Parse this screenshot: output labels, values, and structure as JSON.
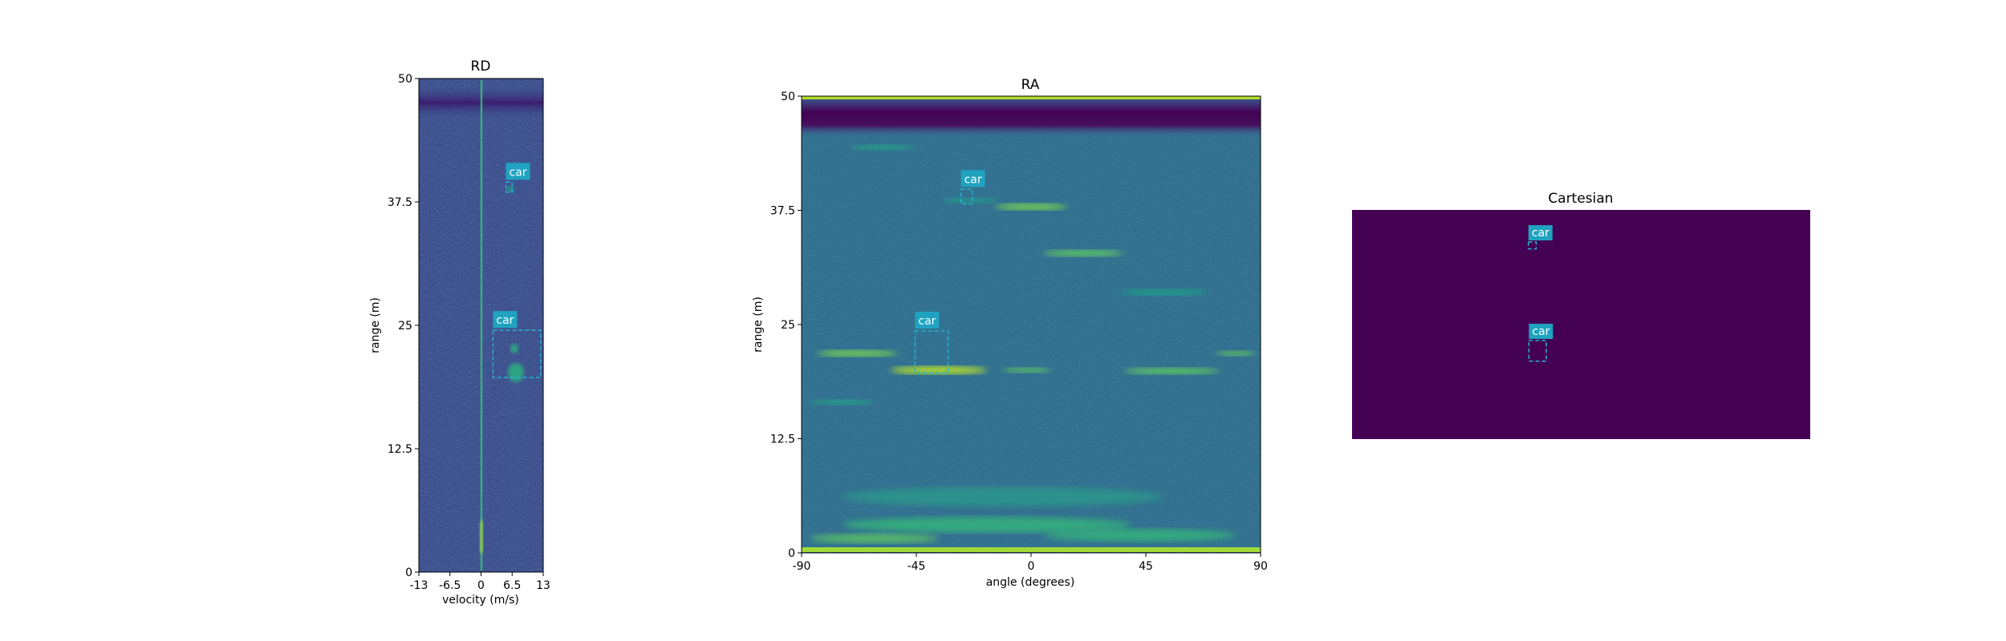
{
  "chart_data": [
    {
      "type": "heatmap",
      "title": "RD",
      "xlabel": "velocity (m/s)",
      "ylabel": "range (m)",
      "xlim": [
        -13,
        13
      ],
      "ylim": [
        0,
        50
      ],
      "x_ticks": [
        "-13",
        "-6.5",
        "0",
        "6.5",
        "13"
      ],
      "y_ticks": [
        "0",
        "12.5",
        "25",
        "37.5",
        "50"
      ],
      "colormap": "viridis",
      "annotations": [
        {
          "label": "car",
          "x0": 5.2,
          "x1": 6.5,
          "y0": 38.5,
          "y1": 39.5
        },
        {
          "label": "car",
          "x0": 2.5,
          "x1": 12.5,
          "y0": 19.7,
          "y1": 24.5
        }
      ]
    },
    {
      "type": "heatmap",
      "title": "RA",
      "xlabel": "angle (degrees)",
      "ylabel": "range (m)",
      "xlim": [
        -90,
        90
      ],
      "ylim": [
        0,
        50
      ],
      "x_ticks": [
        "-90",
        "-45",
        "0",
        "45",
        "90"
      ],
      "y_ticks": [
        "0",
        "12.5",
        "25",
        "37.5",
        "50"
      ],
      "colormap": "viridis",
      "annotations": [
        {
          "label": "car",
          "x0": -27.5,
          "x1": -23,
          "y0": 38.2,
          "y1": 39.8
        },
        {
          "label": "car",
          "x0": -45.5,
          "x1": -32.5,
          "y0": 19.7,
          "y1": 24.3
        }
      ]
    },
    {
      "type": "heatmap",
      "title": "Cartesian",
      "colormap": "viridis",
      "background": "#440154",
      "annotations": [
        {
          "label": "car",
          "x0": 0.385,
          "x1": 0.402,
          "y0": 0.83,
          "y1": 0.86
        },
        {
          "label": "car",
          "x0": 0.386,
          "x1": 0.424,
          "y0": 0.34,
          "y1": 0.43
        }
      ]
    }
  ],
  "colors": {
    "box": "#26b3cf",
    "label_bg": "#1fa3c0",
    "dark": "#440154",
    "deep": "#3b1c6f",
    "mid": "#3b528b",
    "teal": "#2a788e",
    "green": "#22a884",
    "lime": "#7ad151",
    "yellow": "#fde725"
  }
}
